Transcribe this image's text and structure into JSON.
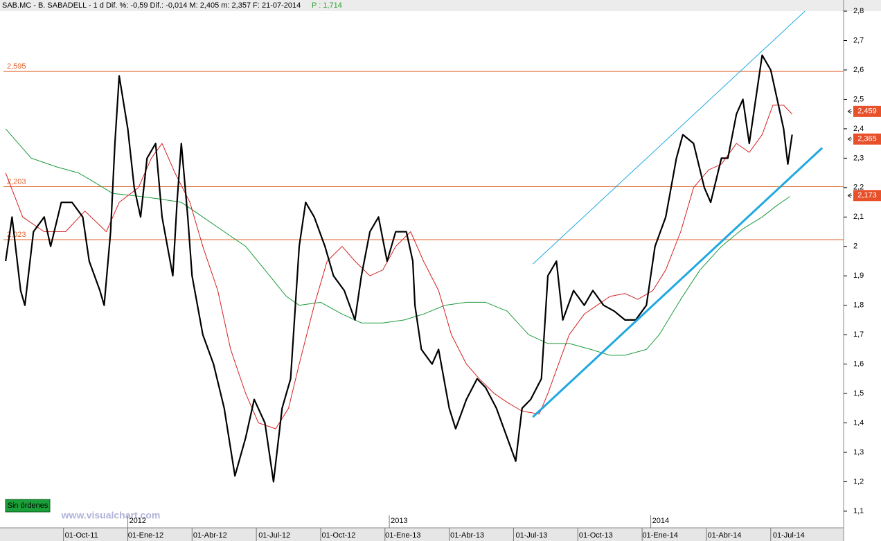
{
  "header": {
    "title": "SAB.MC - B. SABADELL - 1 d Dif. %: -0,59 Dif.: -0,014 M: 2,405 m: 2,357 F: 21-07-2014",
    "last": "P : 1,714"
  },
  "chart_data": {
    "type": "line",
    "xlim": [
      -2.8,
      36.4
    ],
    "xticks": [
      {
        "value": 0,
        "label": "01-Oct-11"
      },
      {
        "value": 3,
        "label": "01-Ene-12"
      },
      {
        "value": 6,
        "label": "01-Abr-12"
      },
      {
        "value": 9,
        "label": "01-Jul-12"
      },
      {
        "value": 12,
        "label": "01-Oct-12"
      },
      {
        "value": 15,
        "label": "01-Ene-13"
      },
      {
        "value": 18,
        "label": "01-Abr-13"
      },
      {
        "value": 21,
        "label": "01-Jul-13"
      },
      {
        "value": 24,
        "label": "01-Oct-13"
      },
      {
        "value": 27,
        "label": "01-Ene-14"
      },
      {
        "value": 30,
        "label": "01-Abr-14"
      },
      {
        "value": 33,
        "label": "01-Jul-14"
      }
    ],
    "year_labels": [
      {
        "value": 3.1,
        "label": "2012"
      },
      {
        "value": 15.3,
        "label": "2013"
      },
      {
        "value": 27.5,
        "label": "2014"
      }
    ],
    "ylim": [
      1.048,
      2.826
    ],
    "yticks": [
      {
        "value": 1.1,
        "label": "1,1"
      },
      {
        "value": 1.2,
        "label": "1,2"
      },
      {
        "value": 1.3,
        "label": "1,3"
      },
      {
        "value": 1.4,
        "label": "1,4"
      },
      {
        "value": 1.5,
        "label": "1,5"
      },
      {
        "value": 1.6,
        "label": "1,6"
      },
      {
        "value": 1.7,
        "label": "1,7"
      },
      {
        "value": 1.8,
        "label": "1,8"
      },
      {
        "value": 1.9,
        "label": "1,9"
      },
      2,
      {
        "value": 2.1,
        "label": "2,1"
      },
      {
        "value": 2.2,
        "label": "2,2"
      },
      {
        "value": 2.3,
        "label": "2,3"
      },
      {
        "value": 2.4,
        "label": "2,4"
      },
      {
        "value": 2.5,
        "label": "2,5"
      },
      {
        "value": 2.6,
        "label": "2,6"
      },
      {
        "value": 2.7,
        "label": "2,7"
      },
      {
        "value": 2.8,
        "label": "2,8"
      }
    ],
    "series": [
      {
        "color": "#000000",
        "width": 2.2,
        "x": [
          -2.7,
          -2.4,
          -2.0,
          -1.8,
          -1.4,
          -0.9,
          -0.6,
          -0.1,
          0.4,
          0.9,
          1.2,
          1.7,
          1.9,
          2.2,
          2.4,
          2.6,
          3.0,
          3.3,
          3.6,
          3.9,
          4.3,
          4.6,
          5.1,
          5.3,
          5.5,
          5.8,
          6.0,
          6.5,
          7.0,
          7.5,
          8.0,
          8.5,
          8.9,
          9.4,
          9.8,
          10.2,
          10.6,
          11.0,
          11.3,
          11.7,
          12.2,
          12.6,
          13.1,
          13.6,
          13.9,
          14.3,
          14.7,
          15.1,
          15.5,
          16.0,
          16.3,
          16.4,
          16.7,
          17.2,
          17.5,
          18.0,
          18.3,
          18.8,
          19.3,
          19.7,
          20.2,
          20.7,
          21.1,
          21.4,
          21.8,
          22.3,
          22.6,
          23.0,
          23.3,
          23.8,
          24.3,
          24.7,
          25.2,
          25.7,
          26.2,
          26.7,
          27.2,
          27.6,
          28.1,
          28.6,
          28.9,
          29.4,
          29.9,
          30.2,
          30.7,
          31.0,
          31.4,
          31.7,
          32.0,
          32.3,
          32.6,
          33.0,
          33.3,
          33.6,
          33.8,
          34.0
        ],
        "values": [
          1.95,
          2.1,
          1.85,
          1.8,
          2.05,
          2.1,
          2.0,
          2.15,
          2.15,
          2.1,
          1.95,
          1.85,
          1.8,
          2.05,
          2.35,
          2.58,
          2.4,
          2.2,
          2.1,
          2.3,
          2.35,
          2.1,
          1.9,
          2.15,
          2.35,
          2.1,
          1.9,
          1.7,
          1.6,
          1.45,
          1.22,
          1.35,
          1.48,
          1.4,
          1.2,
          1.45,
          1.55,
          2.0,
          2.15,
          2.1,
          2.0,
          1.9,
          1.85,
          1.75,
          1.9,
          2.05,
          2.1,
          1.95,
          2.05,
          2.05,
          1.95,
          1.8,
          1.65,
          1.6,
          1.65,
          1.45,
          1.38,
          1.48,
          1.55,
          1.52,
          1.45,
          1.35,
          1.27,
          1.45,
          1.48,
          1.55,
          1.9,
          1.95,
          1.75,
          1.85,
          1.8,
          1.85,
          1.8,
          1.78,
          1.75,
          1.75,
          1.8,
          2.0,
          2.1,
          2.3,
          2.38,
          2.35,
          2.2,
          2.15,
          2.3,
          2.3,
          2.45,
          2.5,
          2.35,
          2.5,
          2.65,
          2.6,
          2.5,
          2.4,
          2.28,
          2.38
        ]
      },
      {
        "color": "#d42020",
        "width": 1,
        "x": [
          -2.7,
          -1.9,
          -0.9,
          0.1,
          1.0,
          2.0,
          2.6,
          3.5,
          4.1,
          4.6,
          5.2,
          5.9,
          6.5,
          7.2,
          7.8,
          8.5,
          9.1,
          9.9,
          10.5,
          11.0,
          11.7,
          12.3,
          13.0,
          13.6,
          14.3,
          14.9,
          15.5,
          16.2,
          16.8,
          17.5,
          18.1,
          18.8,
          19.4,
          20.1,
          20.7,
          21.4,
          22.2,
          22.6,
          23.1,
          23.6,
          24.3,
          24.9,
          25.5,
          26.2,
          26.8,
          27.5,
          28.1,
          28.8,
          29.4,
          30.1,
          30.7,
          31.4,
          32.0,
          32.6,
          33.1,
          33.6,
          34.0
        ],
        "values": [
          2.25,
          2.1,
          2.05,
          2.05,
          2.12,
          2.05,
          2.15,
          2.2,
          2.3,
          2.35,
          2.25,
          2.15,
          2.0,
          1.85,
          1.65,
          1.5,
          1.4,
          1.38,
          1.45,
          1.6,
          1.8,
          1.95,
          2.0,
          1.95,
          1.9,
          1.92,
          2.0,
          2.05,
          1.95,
          1.85,
          1.7,
          1.6,
          1.55,
          1.5,
          1.47,
          1.44,
          1.43,
          1.5,
          1.6,
          1.7,
          1.77,
          1.8,
          1.83,
          1.84,
          1.82,
          1.85,
          1.92,
          2.05,
          2.2,
          2.26,
          2.28,
          2.35,
          2.32,
          2.38,
          2.48,
          2.48,
          2.45
        ]
      },
      {
        "color": "#1a9a3a",
        "width": 1,
        "x": [
          -2.7,
          -1.5,
          -0.3,
          0.7,
          1.4,
          2.3,
          3.6,
          4.6,
          5.5,
          6.5,
          7.5,
          8.5,
          9.4,
          10.4,
          11.0,
          12.0,
          13.0,
          13.9,
          14.9,
          15.9,
          16.8,
          17.8,
          18.8,
          19.7,
          20.7,
          21.7,
          22.6,
          23.6,
          24.6,
          25.5,
          26.2,
          27.2,
          27.8,
          28.8,
          29.7,
          30.7,
          31.7,
          32.6,
          33.3,
          33.9
        ],
        "values": [
          2.4,
          2.3,
          2.27,
          2.25,
          2.22,
          2.18,
          2.17,
          2.16,
          2.15,
          2.1,
          2.05,
          2.0,
          1.92,
          1.83,
          1.8,
          1.81,
          1.77,
          1.74,
          1.74,
          1.75,
          1.77,
          1.8,
          1.81,
          1.81,
          1.78,
          1.7,
          1.67,
          1.67,
          1.65,
          1.63,
          1.63,
          1.65,
          1.7,
          1.82,
          1.92,
          2.0,
          2.06,
          2.1,
          2.14,
          2.17
        ]
      },
      {
        "color": "#1fa8e0",
        "width": 3,
        "x": [
          21.9,
          35.4
        ],
        "values": [
          1.42,
          2.335
        ]
      },
      {
        "color": "#1fa8e0",
        "width": 1,
        "x": [
          21.9,
          34.6
        ],
        "values": [
          1.94,
          2.8
        ]
      }
    ],
    "levels": {
      "color": "#e0622a",
      "values": [
        2.595,
        2.203,
        2.023
      ],
      "value_labels": [
        "2,595",
        "2,203",
        "2,023"
      ]
    },
    "price_tags": {
      "color": "#e8502a",
      "values": [
        2.459,
        2.365,
        2.173
      ],
      "value_labels": [
        "2,459",
        "2,365",
        "2,173"
      ]
    }
  },
  "footer": {
    "status": "Sin órdenes",
    "watermark": "www.visualchart.com"
  }
}
